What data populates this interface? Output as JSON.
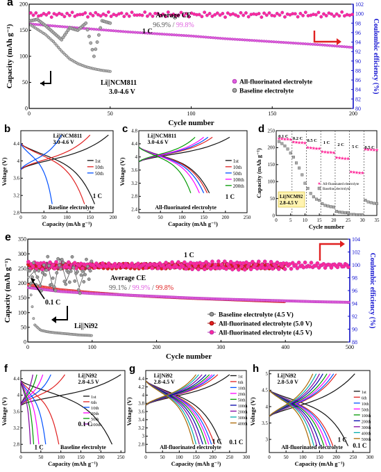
{
  "figure": {
    "colors": {
      "pink": "#e060e0",
      "pink_dark": "#b030b0",
      "gray": "#8a8a8a",
      "gray_dark": "#555555",
      "red": "#e02020",
      "blue": "#1010d0",
      "magenta": "#ff2a9a",
      "ce_base_blue": "#2a2aff",
      "yellow_box": "#fff3b0",
      "cycle_colors_6": [
        "#111111",
        "#e02020",
        "#0050ff",
        "#ff00ff",
        "#009900",
        "#8000a0"
      ],
      "cycle_colors_9": [
        "#111111",
        "#e02020",
        "#0050ff",
        "#ff00ff",
        "#009900",
        "#0000aa",
        "#8000a0",
        "#00aaaa",
        "#aa6600"
      ]
    }
  },
  "chart_data": [
    {
      "panel": "a",
      "type": "scatter",
      "xlabel": "Cycle number",
      "ylabel": "Capacity (mAh g⁻¹)",
      "y2label": "Coulombic efficiency (%)",
      "xlim": [
        0,
        200
      ],
      "ylim": [
        0,
        200
      ],
      "y2lim": [
        80,
        102
      ],
      "xticks": [
        0,
        50,
        100,
        150,
        200
      ],
      "yticks": [
        0,
        50,
        100,
        150,
        200
      ],
      "y2ticks": [
        80,
        82,
        84,
        86,
        88,
        90,
        92,
        94,
        96,
        98,
        100,
        102
      ],
      "annotations": {
        "rate": "1 C",
        "ce_title": "Average CE",
        "ce_gray": "96.9%",
        "ce_sep": " / ",
        "ce_pink": "99.8%",
        "cell": "Li||NCM811",
        "window": "3.0-4.6 V"
      },
      "legend": [
        "All-fluorinated electrolyte",
        "Baseline electrolyte"
      ],
      "series": [
        {
          "name": "All-fluorinated electrolyte",
          "role": "capacity",
          "x": [
            1,
            20,
            40,
            60,
            80,
            100,
            120,
            140,
            160,
            180,
            200
          ],
          "y": [
            162,
            157,
            152,
            147,
            143,
            139,
            134,
            130,
            126,
            122,
            117
          ]
        },
        {
          "name": "Baseline electrolyte",
          "role": "capacity",
          "x": [
            1,
            5,
            10,
            15,
            20,
            25,
            30,
            35,
            40,
            45,
            50
          ],
          "y": [
            160,
            152,
            142,
            128,
            110,
            95,
            86,
            80,
            76,
            73,
            71
          ]
        },
        {
          "name": "All-fluorinated electrolyte",
          "role": "ce",
          "x": [
            1,
            200
          ],
          "y": [
            99.8,
            99.8
          ]
        },
        {
          "name": "Baseline electrolyte",
          "role": "ce",
          "x": [
            1,
            5,
            10,
            15,
            20,
            25,
            30,
            35,
            40,
            45,
            50
          ],
          "y": [
            98.5,
            98.8,
            97.5,
            96.0,
            94.5,
            97.0,
            96.5,
            98.0,
            91.0,
            98.5,
            98.0
          ]
        }
      ]
    },
    {
      "panel": "b",
      "type": "line",
      "xlabel": "Capacity (mAh g⁻¹)",
      "ylabel": "Voltage (V)",
      "xlim": [
        0,
        200
      ],
      "ylim": [
        2.8,
        4.7
      ],
      "xticks": [
        0,
        50,
        100,
        150,
        200
      ],
      "yticks": [
        2.8,
        3.2,
        3.6,
        4.0,
        4.4
      ],
      "annotations": {
        "cell": "Li||NCM811",
        "window": "3.0-4.6 V",
        "rate": "1 C",
        "label": "Baseline electrolyte"
      },
      "series": [
        {
          "name": "1st",
          "charge_cap": 190,
          "discharge_cap": 160
        },
        {
          "name": "10th",
          "charge_cap": 150,
          "discharge_cap": 138
        },
        {
          "name": "50th",
          "charge_cap": 88,
          "discharge_cap": 68
        }
      ]
    },
    {
      "panel": "c",
      "type": "line",
      "xlabel": "Capacity (mAh g⁻¹)",
      "ylabel": "Voltage (V)",
      "xlim": [
        0,
        250
      ],
      "ylim": [
        2.3,
        4.8
      ],
      "xticks": [
        0,
        50,
        100,
        150,
        200,
        250
      ],
      "yticks": [
        2.4,
        2.8,
        3.2,
        3.6,
        4.0,
        4.4,
        4.8
      ],
      "annotations": {
        "cell": "Li||NCM811",
        "window": "3.0-4.6 V",
        "rate": "1 C",
        "label": "All-fluorinated electrolyte"
      },
      "series": [
        {
          "name": "1st",
          "charge_cap": 210,
          "discharge_cap": 163
        },
        {
          "name": "10th",
          "charge_cap": 170,
          "discharge_cap": 158
        },
        {
          "name": "50th",
          "charge_cap": 160,
          "discharge_cap": 150
        },
        {
          "name": "100th",
          "charge_cap": 150,
          "discharge_cap": 140
        },
        {
          "name": "200th",
          "charge_cap": 130,
          "discharge_cap": 120
        }
      ]
    },
    {
      "panel": "d",
      "type": "scatter",
      "xlabel": "Cycle number",
      "ylabel": "Capacity (mAh g⁻¹)",
      "xlim": [
        0,
        35
      ],
      "ylim": [
        0,
        250
      ],
      "xticks": [
        0,
        5,
        10,
        15,
        20,
        25,
        30,
        35
      ],
      "yticks": [
        0,
        50,
        100,
        150,
        200,
        250
      ],
      "rates": [
        "0.1 C",
        "0.2 C",
        "0.5 C",
        "1 C",
        "2 C",
        "5 C",
        "0.5 C"
      ],
      "annotations": {
        "cell": "Li||NCM92",
        "window": "2.8-4.5 V"
      },
      "legend": [
        "All-fluorinated electrolyte",
        "Baseline electrolyte"
      ],
      "series": [
        {
          "name": "All-fluorinated electrolyte",
          "x": [
            1,
            2,
            3,
            4,
            5,
            6,
            7,
            8,
            9,
            10,
            11,
            12,
            13,
            14,
            15,
            16,
            17,
            18,
            19,
            20,
            21,
            22,
            23,
            24,
            25,
            26,
            27,
            28,
            29,
            30,
            31,
            32,
            33,
            34,
            35
          ],
          "y": [
            228,
            227,
            226,
            226,
            225,
            218,
            217,
            216,
            216,
            215,
            202,
            201,
            200,
            199,
            199,
            190,
            189,
            188,
            187,
            186,
            172,
            171,
            170,
            169,
            169,
            130,
            129,
            128,
            127,
            127,
            197,
            196,
            196,
            195,
            195
          ]
        },
        {
          "name": "Baseline electrolyte",
          "x": [
            1,
            2,
            3,
            4,
            5,
            6,
            7,
            8,
            9,
            10,
            11,
            12,
            13,
            14,
            15,
            16,
            17,
            18,
            19,
            20,
            21,
            22,
            23,
            24,
            25,
            26,
            27,
            28,
            29,
            30,
            31,
            32,
            33,
            34,
            35
          ],
          "y": [
            218,
            212,
            205,
            196,
            184,
            172,
            155,
            140,
            120,
            95,
            80,
            65,
            55,
            48,
            45,
            35,
            30,
            28,
            26,
            25,
            12,
            10,
            9,
            8,
            8,
            3,
            3,
            2,
            2,
            2,
            45,
            40,
            38,
            36,
            35
          ]
        }
      ]
    },
    {
      "panel": "e",
      "type": "scatter",
      "xlabel": "Cycle number",
      "ylabel": "Capacity (mAh g⁻¹)",
      "y2label": "Coulombic efficiency (%)",
      "xlim": [
        0,
        500
      ],
      "ylim": [
        0,
        350
      ],
      "y2lim": [
        88,
        104
      ],
      "xticks": [
        0,
        100,
        200,
        300,
        400,
        500
      ],
      "yticks": [
        0,
        50,
        100,
        150,
        200,
        250,
        300,
        350
      ],
      "y2ticks": [
        88,
        90,
        92,
        94,
        96,
        98,
        100,
        102,
        104
      ],
      "annotations": {
        "rate": "1 C",
        "initial_rate": "0.1 C",
        "ce_title": "Average CE",
        "ce_gray": "99.1%",
        "ce_sep": " / ",
        "ce_pink": "99.9%",
        "ce_sep2": " / ",
        "ce_red": "99.8%",
        "cell": "Li||Ni92"
      },
      "legend": [
        "Baseline electrolyte (4.5 V)",
        "All-fluorinated electrolyte (5.0 V)",
        "All-fluorinated electrolyte (4.5 V)"
      ],
      "series": [
        {
          "name": "All-fluorinated electrolyte (4.5 V)",
          "role": "capacity",
          "x": [
            1,
            50,
            100,
            150,
            200,
            250,
            300,
            350,
            400,
            450,
            500
          ],
          "y": [
            185,
            172,
            165,
            160,
            155,
            150,
            146,
            143,
            140,
            137,
            135
          ]
        },
        {
          "name": "All-fluorinated electrolyte (5.0 V)",
          "role": "capacity",
          "x": [
            1,
            50,
            100,
            150,
            200,
            250,
            300,
            350,
            400
          ],
          "y": [
            195,
            178,
            168,
            160,
            154,
            149,
            145,
            141,
            137
          ]
        },
        {
          "name": "Baseline electrolyte (4.5 V)",
          "role": "capacity",
          "x": [
            1,
            5,
            10,
            20,
            30,
            40,
            50,
            60,
            70,
            80,
            90,
            100
          ],
          "y": [
            220,
            160,
            60,
            40,
            35,
            32,
            30,
            28,
            26,
            24,
            23,
            22
          ]
        },
        {
          "name": "All-fluorinated electrolyte (4.5 V)",
          "role": "ce",
          "x": [
            1,
            500
          ],
          "y": [
            99.9,
            99.9
          ]
        },
        {
          "name": "All-fluorinated electrolyte (5.0 V)",
          "role": "ce",
          "x": [
            1,
            400
          ],
          "y": [
            99.8,
            99.8
          ]
        },
        {
          "name": "Baseline electrolyte (4.5 V)",
          "role": "ce",
          "x": [
            1,
            10,
            20,
            30,
            40,
            50,
            60,
            70,
            80,
            90,
            100
          ],
          "y": [
            98.0,
            99.0,
            97.0,
            100.5,
            96.0,
            101.0,
            97.5,
            100.0,
            96.5,
            99.5,
            99.0
          ]
        }
      ]
    },
    {
      "panel": "f",
      "type": "line",
      "xlabel": "Capacity (mAh g⁻¹)",
      "ylabel": "Voltage (V)",
      "xlim": [
        0,
        260
      ],
      "ylim": [
        2.6,
        4.6
      ],
      "xticks": [
        0,
        50,
        100,
        150,
        200,
        250
      ],
      "yticks": [
        2.8,
        3.2,
        3.6,
        4.0,
        4.4
      ],
      "annotations": {
        "cell": "Li||Ni92",
        "window": "2.8-4.5 V",
        "rate_initial": "0.1 C",
        "rate": "1 C",
        "label": "Baseline electrolyte"
      },
      "series": [
        {
          "name": "1st",
          "charge_cap": 250,
          "discharge_cap": 228
        },
        {
          "name": "6th",
          "charge_cap": 110,
          "discharge_cap": 95
        },
        {
          "name": "10th",
          "charge_cap": 75,
          "discharge_cap": 62
        },
        {
          "name": "20th",
          "charge_cap": 55,
          "discharge_cap": 45
        },
        {
          "name": "50th",
          "charge_cap": 40,
          "discharge_cap": 32
        },
        {
          "name": "100th",
          "charge_cap": 30,
          "discharge_cap": 24
        }
      ]
    },
    {
      "panel": "g",
      "type": "line",
      "xlabel": "Capacity (mAh g⁻¹)",
      "ylabel": "Voltage (V)",
      "xlim": [
        0,
        300
      ],
      "ylim": [
        2.6,
        4.6
      ],
      "xticks": [
        0,
        50,
        100,
        150,
        200,
        250,
        300
      ],
      "yticks": [
        2.8,
        3.0,
        3.2,
        3.4,
        3.6,
        3.8,
        4.0,
        4.2,
        4.4
      ],
      "annotations": {
        "cell": "Li||Ni92",
        "window": "2.8-4.5 V",
        "rate_initial": "0.1 C",
        "rate": "1 C",
        "label": "All-fluorinated electrolyte"
      },
      "series": [
        {
          "name": "1st",
          "charge_cap": 250,
          "discharge_cap": 225
        },
        {
          "name": "6th",
          "charge_cap": 215,
          "discharge_cap": 205
        },
        {
          "name": "10th",
          "charge_cap": 205,
          "discharge_cap": 196
        },
        {
          "name": "20th",
          "charge_cap": 198,
          "discharge_cap": 188
        },
        {
          "name": "50th",
          "charge_cap": 190,
          "discharge_cap": 180
        },
        {
          "name": "100th",
          "charge_cap": 180,
          "discharge_cap": 170
        },
        {
          "name": "200th",
          "charge_cap": 168,
          "discharge_cap": 160
        },
        {
          "name": "300th",
          "charge_cap": 158,
          "discharge_cap": 150
        },
        {
          "name": "400th",
          "charge_cap": 150,
          "discharge_cap": 142
        }
      ]
    },
    {
      "panel": "h",
      "type": "line",
      "xlabel": "Capacity (mAh g⁻¹)",
      "ylabel": "Voltage (V)",
      "xlim": [
        0,
        300
      ],
      "ylim": [
        2.6,
        5.1
      ],
      "xticks": [
        0,
        50,
        100,
        150,
        200,
        250,
        300
      ],
      "yticks": [
        3.0,
        3.5,
        4.0,
        4.5,
        5.0
      ],
      "annotations": {
        "cell": "Li||Ni92",
        "window": "2.8-5.0 V",
        "rate_initial": "0.1 C",
        "rate": "1 C",
        "label": "All-fluorinated electrolyte"
      },
      "series": [
        {
          "name": "1st",
          "charge_cap": 255,
          "discharge_cap": 235
        },
        {
          "name": "6th",
          "charge_cap": 200,
          "discharge_cap": 190
        },
        {
          "name": "10th",
          "charge_cap": 192,
          "discharge_cap": 182
        },
        {
          "name": "50th",
          "charge_cap": 182,
          "discharge_cap": 172
        },
        {
          "name": "100th",
          "charge_cap": 172,
          "discharge_cap": 163
        },
        {
          "name": "200th",
          "charge_cap": 160,
          "discharge_cap": 152
        },
        {
          "name": "300th",
          "charge_cap": 150,
          "discharge_cap": 142
        },
        {
          "name": "400th",
          "charge_cap": 140,
          "discharge_cap": 133
        },
        {
          "name": "500th",
          "charge_cap": 130,
          "discharge_cap": 123
        }
      ]
    }
  ]
}
